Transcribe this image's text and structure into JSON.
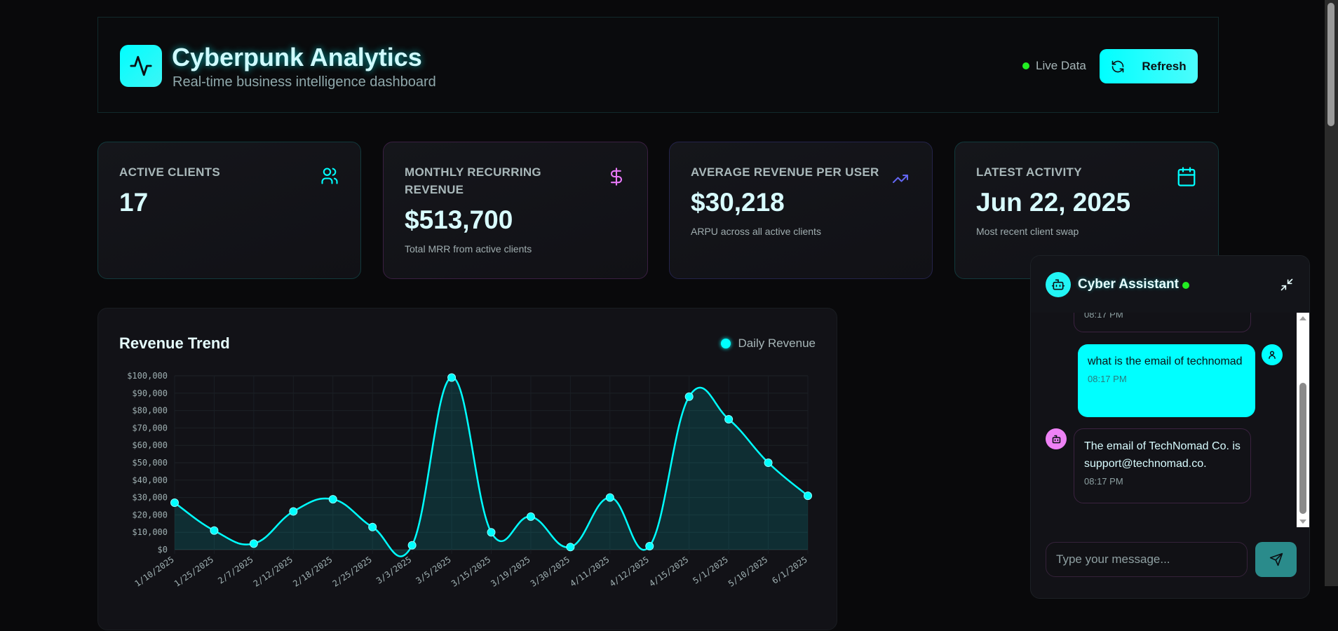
{
  "header": {
    "title": "Cyberpunk Analytics",
    "subtitle": "Real-time business intelligence dashboard",
    "live_label": "Live Data",
    "refresh_label": "Refresh"
  },
  "stats": [
    {
      "label": "ACTIVE CLIENTS",
      "value": "17",
      "sub": "",
      "icon": "users-icon",
      "color": "#00ffff"
    },
    {
      "label": "MONTHLY RECURRING REVENUE",
      "value": "$513,700",
      "sub": "Total MRR from active clients",
      "icon": "dollar-icon",
      "color": "#e879f9"
    },
    {
      "label": "AVERAGE REVENUE PER USER",
      "value": "$30,218",
      "sub": "ARPU across all active clients",
      "icon": "trending-up-icon",
      "color": "#6366f1"
    },
    {
      "label": "LATEST ACTIVITY",
      "value": "Jun 22, 2025",
      "sub": "Most recent client swap",
      "icon": "calendar-icon",
      "color": "#00ffff"
    }
  ],
  "chart_data": {
    "type": "line",
    "title": "Revenue Trend",
    "legend": "Daily Revenue",
    "legend_position": "top-right",
    "categories": [
      "1/10/2025",
      "1/25/2025",
      "2/7/2025",
      "2/12/2025",
      "2/18/2025",
      "2/25/2025",
      "3/3/2025",
      "3/5/2025",
      "3/15/2025",
      "3/19/2025",
      "3/30/2025",
      "4/11/2025",
      "4/12/2025",
      "4/15/2025",
      "5/1/2025",
      "5/10/2025",
      "6/1/2025"
    ],
    "values": [
      27000,
      11000,
      3500,
      22000,
      29000,
      13000,
      2500,
      99000,
      10000,
      19000,
      1500,
      30000,
      2000,
      88000,
      75000,
      50000,
      31000
    ],
    "ylim": [
      0,
      100000
    ],
    "yticks": [
      "$0",
      "$10,000",
      "$20,000",
      "$30,000",
      "$40,000",
      "$50,000",
      "$60,000",
      "$70,000",
      "$80,000",
      "$90,000",
      "$100,000"
    ],
    "grid": true,
    "color": "#00ffff"
  },
  "chat": {
    "title": "Cyber Assistant",
    "messages": [
      {
        "role": "bot",
        "text": "",
        "time": "08:17 PM"
      },
      {
        "role": "user",
        "text": "what is the email of technomad",
        "time": "08:17 PM"
      },
      {
        "role": "bot",
        "text": "The email of TechNomad Co. is support@technomad.co.",
        "time": "08:17 PM"
      }
    ],
    "placeholder": "Type your message..."
  }
}
